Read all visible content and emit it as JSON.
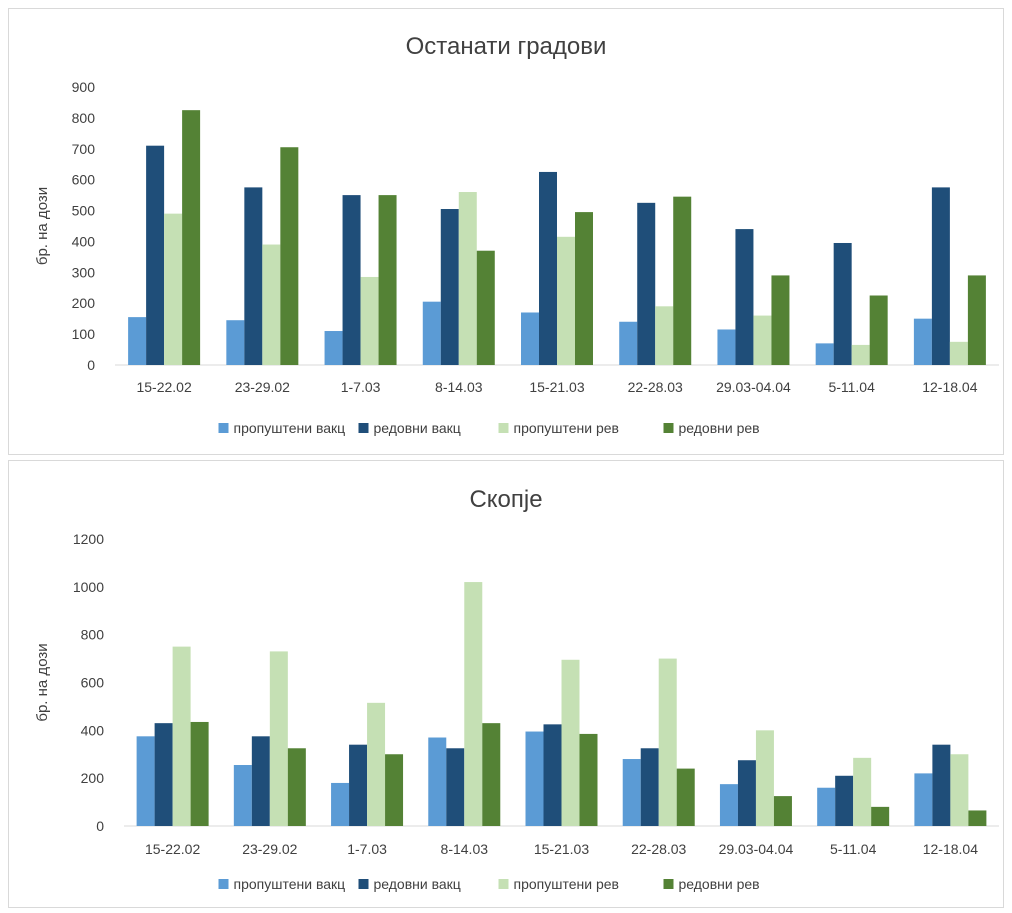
{
  "colors": {
    "propushteni_vakc": "#5b9bd5",
    "redovni_vakc": "#1f4e79",
    "propushteni_rev": "#c5e0b4",
    "redovni_rev": "#548235"
  },
  "chart_data": [
    {
      "type": "bar",
      "title": "Останати градови",
      "xlabel": "",
      "ylabel": "бр. на дози",
      "ylim": [
        0,
        900
      ],
      "yticks": [
        "0",
        "100",
        "200",
        "300",
        "400",
        "500",
        "600",
        "700",
        "800",
        "900"
      ],
      "categories": [
        "15-22.02",
        "23-29.02",
        "1-7.03",
        "8-14.03",
        "15-21.03",
        "22-28.03",
        "29.03-04.04",
        "5-11.04",
        "12-18.04"
      ],
      "series": [
        {
          "name": "пропуштени вакц",
          "color": "#5b9bd5",
          "values": [
            155,
            145,
            110,
            205,
            170,
            140,
            115,
            70,
            150
          ]
        },
        {
          "name": "редовни вакц",
          "color": "#1f4e79",
          "values": [
            710,
            575,
            550,
            505,
            625,
            525,
            440,
            395,
            575
          ]
        },
        {
          "name": "пропуштени рев",
          "color": "#c5e0b4",
          "values": [
            490,
            390,
            285,
            560,
            415,
            190,
            160,
            65,
            75
          ]
        },
        {
          "name": "редовни рев",
          "color": "#548235",
          "values": [
            825,
            705,
            550,
            370,
            495,
            545,
            290,
            225,
            290
          ]
        }
      ],
      "grid": false,
      "legend": "bottom"
    },
    {
      "type": "bar",
      "title": "Скопје",
      "xlabel": "",
      "ylabel": "бр. на дози",
      "ylim": [
        0,
        1200
      ],
      "yticks": [
        "0",
        "200",
        "400",
        "600",
        "800",
        "1000",
        "1200"
      ],
      "categories": [
        "15-22.02",
        "23-29.02",
        "1-7.03",
        "8-14.03",
        "15-21.03",
        "22-28.03",
        "29.03-04.04",
        "5-11.04",
        "12-18.04"
      ],
      "series": [
        {
          "name": "пропуштени вакц",
          "color": "#5b9bd5",
          "values": [
            375,
            255,
            180,
            370,
            395,
            280,
            175,
            160,
            220
          ]
        },
        {
          "name": "редовни вакц",
          "color": "#1f4e79",
          "values": [
            430,
            375,
            340,
            325,
            425,
            325,
            275,
            210,
            340
          ]
        },
        {
          "name": "пропуштени рев",
          "color": "#c5e0b4",
          "values": [
            750,
            730,
            515,
            1020,
            695,
            700,
            400,
            285,
            300
          ]
        },
        {
          "name": "редовни рев",
          "color": "#548235",
          "values": [
            435,
            325,
            300,
            430,
            385,
            240,
            125,
            80,
            65
          ]
        }
      ],
      "grid": false,
      "legend": "bottom"
    }
  ]
}
